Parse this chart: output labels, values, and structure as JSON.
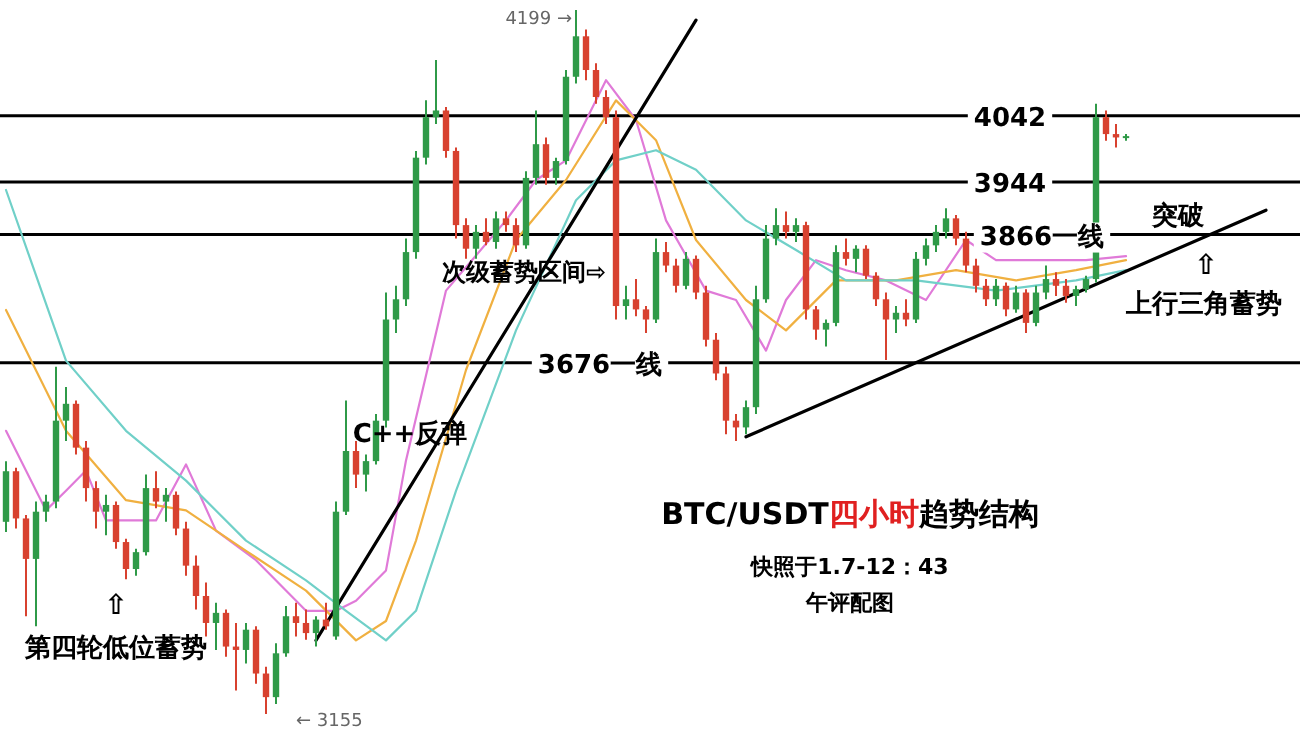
{
  "chart_data": {
    "type": "candlestick",
    "title": "BTC/USDT四小时趋势结构",
    "categories": [
      null,
      null,
      null,
      null,
      null,
      null,
      null,
      null,
      null,
      null,
      null,
      null,
      null,
      null,
      null,
      null,
      null,
      null,
      null,
      null,
      null,
      null,
      null,
      null,
      null,
      null,
      null,
      null,
      null,
      null,
      null,
      null,
      null,
      null,
      null,
      null,
      null,
      null,
      null,
      null,
      null,
      null,
      null,
      null,
      null,
      null,
      null,
      null,
      null,
      null,
      null,
      null,
      null,
      null,
      null,
      null,
      null,
      null,
      null,
      null,
      null,
      null,
      null,
      null,
      null,
      null,
      null,
      null,
      null,
      null,
      null,
      null,
      null,
      null,
      null,
      null,
      null,
      null,
      null,
      null,
      null,
      null,
      null,
      null,
      null,
      null,
      null,
      null,
      null,
      null,
      null,
      null,
      null,
      null,
      null,
      null,
      null,
      null,
      null,
      null,
      null,
      null,
      null,
      null,
      null,
      null,
      null,
      null,
      null,
      null,
      null,
      null,
      null,
      null,
      null,
      null,
      null,
      null,
      null,
      null,
      null,
      null,
      null,
      null,
      null,
      null,
      null,
      null,
      null,
      null
    ],
    "ohlc": [
      [
        3440,
        3530,
        3425,
        3515
      ],
      [
        3515,
        3520,
        3430,
        3445
      ],
      [
        3445,
        3450,
        3300,
        3385
      ],
      [
        3385,
        3470,
        3285,
        3455
      ],
      [
        3455,
        3480,
        3440,
        3470
      ],
      [
        3470,
        3670,
        3460,
        3590
      ],
      [
        3590,
        3640,
        3560,
        3615
      ],
      [
        3615,
        3620,
        3540,
        3550
      ],
      [
        3550,
        3560,
        3470,
        3490
      ],
      [
        3490,
        3500,
        3430,
        3455
      ],
      [
        3455,
        3480,
        3420,
        3465
      ],
      [
        3465,
        3470,
        3400,
        3410
      ],
      [
        3410,
        3415,
        3355,
        3370
      ],
      [
        3370,
        3400,
        3360,
        3395
      ],
      [
        3395,
        3510,
        3390,
        3490
      ],
      [
        3490,
        3515,
        3460,
        3470
      ],
      [
        3470,
        3490,
        3440,
        3480
      ],
      [
        3480,
        3485,
        3420,
        3430
      ],
      [
        3430,
        3440,
        3360,
        3375
      ],
      [
        3375,
        3390,
        3310,
        3330
      ],
      [
        3330,
        3350,
        3270,
        3290
      ],
      [
        3290,
        3320,
        3250,
        3305
      ],
      [
        3305,
        3310,
        3240,
        3255
      ],
      [
        3255,
        3290,
        3190,
        3250
      ],
      [
        3250,
        3290,
        3230,
        3280
      ],
      [
        3280,
        3285,
        3200,
        3215
      ],
      [
        3215,
        3225,
        3155,
        3180
      ],
      [
        3180,
        3260,
        3170,
        3245
      ],
      [
        3245,
        3315,
        3240,
        3300
      ],
      [
        3300,
        3320,
        3270,
        3290
      ],
      [
        3290,
        3310,
        3265,
        3275
      ],
      [
        3275,
        3300,
        3255,
        3295
      ],
      [
        3295,
        3320,
        3280,
        3285
      ],
      [
        3270,
        3470,
        3265,
        3455
      ],
      [
        3455,
        3620,
        3450,
        3545
      ],
      [
        3545,
        3560,
        3490,
        3510
      ],
      [
        3510,
        3540,
        3485,
        3530
      ],
      [
        3530,
        3600,
        3525,
        3590
      ],
      [
        3590,
        3780,
        3580,
        3740
      ],
      [
        3740,
        3790,
        3720,
        3770
      ],
      [
        3770,
        3860,
        3760,
        3840
      ],
      [
        3840,
        3990,
        3830,
        3980
      ],
      [
        3980,
        4065,
        3970,
        4040
      ],
      [
        4040,
        4125,
        4030,
        4050
      ],
      [
        4050,
        4055,
        3980,
        3990
      ],
      [
        3990,
        3995,
        3860,
        3880
      ],
      [
        3880,
        3890,
        3830,
        3845
      ],
      [
        3845,
        3880,
        3830,
        3870
      ],
      [
        3870,
        3890,
        3850,
        3855
      ],
      [
        3855,
        3900,
        3845,
        3890
      ],
      [
        3890,
        3900,
        3870,
        3880
      ],
      [
        3880,
        3890,
        3840,
        3850
      ],
      [
        3850,
        3960,
        3845,
        3950
      ],
      [
        3950,
        4050,
        3940,
        4000
      ],
      [
        4000,
        4010,
        3940,
        3950
      ],
      [
        3950,
        3980,
        3940,
        3975
      ],
      [
        3975,
        4110,
        3970,
        4100
      ],
      [
        4100,
        4199,
        4090,
        4160
      ],
      [
        4160,
        4170,
        4095,
        4110
      ],
      [
        4110,
        4120,
        4060,
        4070
      ],
      [
        4070,
        4080,
        4030,
        4040
      ],
      [
        4040,
        4050,
        3740,
        3760
      ],
      [
        3760,
        3790,
        3740,
        3770
      ],
      [
        3770,
        3800,
        3745,
        3755
      ],
      [
        3755,
        3760,
        3720,
        3740
      ],
      [
        3740,
        3860,
        3735,
        3840
      ],
      [
        3840,
        3855,
        3810,
        3820
      ],
      [
        3820,
        3830,
        3780,
        3790
      ],
      [
        3790,
        3840,
        3785,
        3830
      ],
      [
        3830,
        3835,
        3770,
        3780
      ],
      [
        3780,
        3790,
        3700,
        3710
      ],
      [
        3710,
        3720,
        3650,
        3660
      ],
      [
        3660,
        3670,
        3570,
        3590
      ],
      [
        3590,
        3600,
        3560,
        3580
      ],
      [
        3580,
        3620,
        3570,
        3610
      ],
      [
        3610,
        3790,
        3600,
        3770
      ],
      [
        3770,
        3880,
        3765,
        3860
      ],
      [
        3860,
        3905,
        3850,
        3880
      ],
      [
        3880,
        3900,
        3860,
        3870
      ],
      [
        3870,
        3890,
        3855,
        3880
      ],
      [
        3880,
        3885,
        3740,
        3755
      ],
      [
        3755,
        3760,
        3710,
        3725
      ],
      [
        3725,
        3740,
        3700,
        3735
      ],
      [
        3735,
        3850,
        3730,
        3840
      ],
      [
        3840,
        3860,
        3820,
        3830
      ],
      [
        3830,
        3850,
        3810,
        3845
      ],
      [
        3845,
        3850,
        3800,
        3805
      ],
      [
        3805,
        3810,
        3760,
        3770
      ],
      [
        3770,
        3780,
        3680,
        3740
      ],
      [
        3740,
        3760,
        3720,
        3750
      ],
      [
        3750,
        3770,
        3730,
        3740
      ],
      [
        3740,
        3840,
        3735,
        3830
      ],
      [
        3830,
        3860,
        3820,
        3850
      ],
      [
        3850,
        3880,
        3840,
        3870
      ],
      [
        3870,
        3905,
        3860,
        3890
      ],
      [
        3890,
        3895,
        3850,
        3860
      ],
      [
        3860,
        3870,
        3810,
        3820
      ],
      [
        3820,
        3830,
        3780,
        3790
      ],
      [
        3790,
        3800,
        3760,
        3770
      ],
      [
        3770,
        3800,
        3760,
        3790
      ],
      [
        3790,
        3795,
        3745,
        3755
      ],
      [
        3755,
        3790,
        3750,
        3780
      ],
      [
        3780,
        3785,
        3720,
        3735
      ],
      [
        3735,
        3790,
        3730,
        3780
      ],
      [
        3780,
        3820,
        3770,
        3800
      ],
      [
        3800,
        3810,
        3775,
        3790
      ],
      [
        3790,
        3800,
        3765,
        3775
      ],
      [
        3775,
        3790,
        3760,
        3785
      ],
      [
        3785,
        3805,
        3780,
        3800
      ],
      [
        3800,
        4060,
        3795,
        4040
      ],
      [
        4040,
        4050,
        4005,
        4015
      ],
      [
        4015,
        4030,
        3995,
        4010
      ],
      [
        4010,
        4015,
        4005,
        4012
      ],
      null,
      null,
      null,
      null,
      null,
      null,
      null,
      null,
      null,
      null,
      null,
      null,
      null,
      null,
      null,
      null,
      null
    ],
    "series": [
      {
        "type": "line",
        "color": "#e07ad8",
        "values": [
          3575,
          null,
          null,
          null,
          3457,
          null,
          3486,
          null,
          3516,
          null,
          3442,
          null,
          null,
          null,
          null,
          3442,
          null,
          null,
          3525,
          null,
          null,
          3427,
          null,
          null,
          null,
          3383,
          null,
          null,
          null,
          null,
          3308,
          null,
          null,
          3308,
          null,
          3323,
          null,
          null,
          3368,
          null,
          3531,
          null,
          null,
          null,
          3783,
          null,
          null,
          null,
          null,
          null,
          3887,
          null,
          null,
          3947,
          null,
          null,
          3976,
          null,
          null,
          null,
          4095,
          null,
          null,
          4036,
          null,
          null,
          3887,
          null,
          null,
          null,
          3783,
          null,
          null,
          3769,
          null,
          null,
          3694,
          null,
          3769,
          null,
          null,
          3828,
          null,
          null,
          3813,
          null,
          null,
          null,
          3798,
          null,
          null,
          null,
          3769,
          null,
          null,
          null,
          3858,
          null,
          null,
          3828,
          null,
          null,
          null,
          3828,
          null,
          null,
          null,
          null,
          3828,
          null,
          null,
          null,
          3834,
          null,
          null,
          null,
          null,
          null,
          null,
          null,
          null,
          null,
          null,
          null,
          null,
          null,
          null,
          null,
          null,
          null
        ]
      },
      {
        "type": "line",
        "color": "#f0b040",
        "values": [
          3754,
          null,
          null,
          null,
          null,
          null,
          3575,
          null,
          null,
          null,
          null,
          null,
          3472,
          null,
          null,
          null,
          null,
          null,
          3457,
          null,
          null,
          null,
          null,
          null,
          3397,
          null,
          null,
          null,
          null,
          null,
          3338,
          null,
          null,
          null,
          null,
          3264,
          null,
          null,
          3293,
          null,
          null,
          3412,
          null,
          null,
          null,
          null,
          3665,
          null,
          null,
          null,
          null,
          3858,
          null,
          null,
          null,
          null,
          3947,
          null,
          null,
          null,
          null,
          4065,
          null,
          null,
          null,
          4006,
          null,
          null,
          null,
          3858,
          null,
          null,
          null,
          null,
          3769,
          null,
          null,
          null,
          3724,
          null,
          null,
          null,
          null,
          3798,
          null,
          null,
          null,
          null,
          null,
          3798,
          null,
          null,
          null,
          null,
          null,
          3813,
          null,
          null,
          null,
          null,
          null,
          3798,
          null,
          null,
          null,
          null,
          null,
          3813,
          null,
          null,
          null,
          null,
          3828,
          null,
          null,
          null,
          null,
          null,
          null,
          null,
          null,
          null,
          null,
          null,
          null,
          null,
          null,
          null,
          null,
          null
        ]
      },
      {
        "type": "line",
        "color": "#70d0c8",
        "values": [
          3932,
          null,
          null,
          null,
          null,
          null,
          3679,
          null,
          null,
          null,
          null,
          null,
          3575,
          null,
          null,
          null,
          null,
          null,
          3501,
          null,
          null,
          null,
          null,
          null,
          3412,
          null,
          null,
          null,
          null,
          null,
          3353,
          null,
          null,
          null,
          3308,
          null,
          null,
          null,
          3264,
          null,
          null,
          3308,
          null,
          null,
          null,
          3486,
          null,
          null,
          null,
          null,
          null,
          3724,
          null,
          null,
          null,
          null,
          null,
          3917,
          null,
          null,
          null,
          3976,
          null,
          null,
          null,
          3991,
          null,
          null,
          null,
          3962,
          null,
          null,
          null,
          null,
          3887,
          null,
          null,
          null,
          null,
          3843,
          null,
          null,
          null,
          null,
          3798,
          null,
          null,
          null,
          null,
          null,
          null,
          3798,
          null,
          null,
          null,
          null,
          null,
          null,
          null,
          3783,
          null,
          null,
          null,
          null,
          null,
          null,
          null,
          3798,
          null,
          null,
          null,
          null,
          3813,
          null,
          null,
          null,
          null,
          null,
          null,
          null,
          null,
          null,
          null,
          null,
          null,
          null,
          null,
          null,
          null,
          null
        ]
      },
      {
        "type": "line",
        "color": "#000000",
        "values": [
          null,
          null,
          null,
          null,
          null,
          null,
          null,
          null,
          null,
          null,
          null,
          null,
          null,
          null,
          null,
          null,
          null,
          null,
          null,
          null,
          null,
          null,
          null,
          null,
          null,
          null,
          null,
          null,
          null,
          null,
          null,
          3264,
          null,
          null,
          null,
          null,
          null,
          null,
          null,
          null,
          null,
          null,
          null,
          null,
          null,
          null,
          null,
          null,
          null,
          null,
          null,
          null,
          null,
          null,
          null,
          null,
          null,
          null,
          null,
          null,
          null,
          null,
          null,
          null,
          null,
          null,
          null,
          null,
          null,
          4184,
          null,
          null,
          null,
          null,
          null,
          null,
          null,
          null,
          null,
          null,
          null,
          null,
          null,
          null,
          null,
          null,
          null,
          null,
          null,
          null,
          null,
          null,
          null,
          null,
          null,
          null,
          null,
          null,
          null,
          null,
          null,
          null,
          null,
          null,
          null,
          null,
          null,
          null,
          null,
          null,
          null,
          null,
          null,
          null,
          null,
          null,
          null,
          null,
          null,
          null,
          null,
          null,
          null,
          null,
          null,
          null,
          null,
          null,
          null,
          null
        ]
      },
      {
        "type": "line",
        "color": "#000000",
        "values": [
          null,
          null,
          null,
          null,
          null,
          null,
          null,
          null,
          null,
          null,
          null,
          null,
          null,
          null,
          null,
          null,
          null,
          null,
          null,
          null,
          null,
          null,
          null,
          null,
          null,
          null,
          null,
          null,
          null,
          null,
          null,
          null,
          null,
          null,
          null,
          null,
          null,
          null,
          null,
          null,
          null,
          null,
          null,
          null,
          null,
          null,
          null,
          null,
          null,
          null,
          null,
          null,
          null,
          null,
          null,
          null,
          null,
          null,
          null,
          null,
          null,
          null,
          null,
          null,
          null,
          null,
          null,
          null,
          null,
          null,
          null,
          null,
          null,
          null,
          3566,
          null,
          null,
          null,
          null,
          null,
          null,
          null,
          null,
          null,
          null,
          null,
          null,
          null,
          null,
          null,
          null,
          null,
          null,
          null,
          null,
          null,
          null,
          null,
          null,
          null,
          null,
          null,
          null,
          null,
          null,
          null,
          null,
          null,
          null,
          null,
          null,
          null,
          null,
          null,
          null,
          null,
          null,
          null,
          null,
          null,
          null,
          null,
          null,
          null,
          null,
          null,
          3902,
          null,
          null,
          null
        ]
      }
    ],
    "ref_lines": [
      {
        "axis": "y",
        "value": 4042,
        "label": "4042",
        "color": "#000000"
      },
      {
        "axis": "y",
        "value": 3944,
        "label": "3944",
        "color": "#000000"
      },
      {
        "axis": "y",
        "value": 3866,
        "label": "3866一线",
        "color": "#000000"
      },
      {
        "axis": "y",
        "value": 3676,
        "label": "3676一线",
        "color": "#000000"
      }
    ],
    "annotations": [
      "4199 →",
      "← 3155",
      "⇧",
      "第四轮低位蓄势",
      "C++反弹",
      "次级蓄势区间⇨",
      "突破",
      "⇧",
      "上行三角蓄势",
      "快照于1.7-12：43",
      "午评配图"
    ]
  }
}
